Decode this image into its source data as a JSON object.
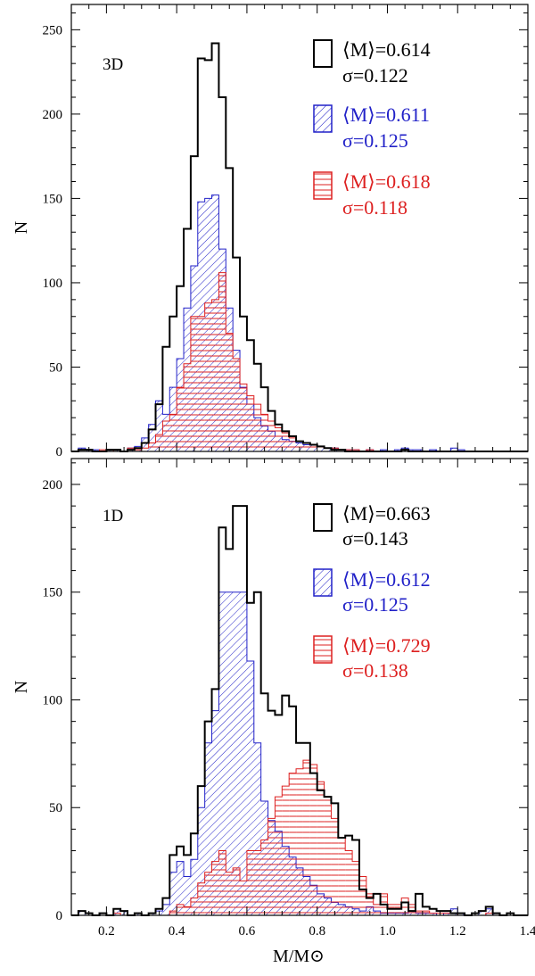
{
  "chart_data": [
    {
      "type": "histogram",
      "panel_label": "3D",
      "ylabel": "N",
      "xlabel": "",
      "xlim": [
        0.1,
        1.4
      ],
      "ylim": [
        0,
        265
      ],
      "bin_width": 0.02,
      "bin_start": 0.1,
      "x_ticks": [
        0.2,
        0.4,
        0.6,
        0.8,
        1.0,
        1.2,
        1.4
      ],
      "x_tick_labels": [],
      "y_ticks": [
        0,
        50,
        100,
        150,
        200,
        250
      ],
      "y_tick_labels": [
        "0",
        "50",
        "100",
        "150",
        "200",
        "250"
      ],
      "series": [
        {
          "name": "black",
          "color": "#000000",
          "fill": "none",
          "legend_mean": "⟨M⟩=0.614",
          "legend_sigma": "σ=0.122",
          "counts": [
            0,
            1,
            1,
            0,
            0,
            1,
            1,
            0,
            1,
            2,
            5,
            13,
            28,
            62,
            80,
            98,
            132,
            175,
            233,
            232,
            242,
            210,
            168,
            115,
            80,
            66,
            52,
            38,
            24,
            16,
            12,
            9,
            6,
            5,
            4,
            3,
            2,
            1,
            1,
            0,
            0,
            0,
            0,
            0,
            0,
            0,
            0,
            1,
            0,
            0,
            0,
            0,
            0,
            0,
            0,
            0,
            0,
            0,
            0,
            0,
            0,
            0,
            0,
            0,
            0
          ]
        },
        {
          "name": "blue",
          "color": "#2121c8",
          "fill": "hatch-diagonal",
          "legend_mean": "⟨M⟩=0.611",
          "legend_sigma": "σ=0.125",
          "counts": [
            0,
            2,
            1,
            1,
            0,
            1,
            1,
            0,
            2,
            3,
            8,
            16,
            30,
            22,
            38,
            55,
            85,
            110,
            148,
            150,
            152,
            120,
            85,
            60,
            38,
            28,
            20,
            15,
            12,
            9,
            7,
            6,
            5,
            4,
            4,
            3,
            2,
            2,
            1,
            1,
            1,
            0,
            1,
            0,
            1,
            0,
            1,
            2,
            1,
            1,
            0,
            1,
            0,
            0,
            2,
            1,
            0,
            0,
            0,
            0,
            0,
            0,
            0,
            0,
            0
          ]
        },
        {
          "name": "red",
          "color": "#dd2020",
          "fill": "hatch-horizontal",
          "legend_mean": "⟨M⟩=0.618",
          "legend_sigma": "σ=0.118",
          "counts": [
            0,
            0,
            0,
            0,
            1,
            0,
            1,
            0,
            2,
            1,
            2,
            5,
            10,
            18,
            22,
            38,
            52,
            80,
            80,
            88,
            90,
            106,
            70,
            55,
            40,
            33,
            28,
            22,
            18,
            14,
            11,
            8,
            6,
            5,
            4,
            3,
            2,
            2,
            1,
            1,
            1,
            0,
            1,
            0,
            0,
            0,
            0,
            0,
            0,
            0,
            0,
            0,
            0,
            0,
            0,
            0,
            0,
            0,
            0,
            0,
            0,
            0,
            0,
            0,
            0
          ]
        }
      ]
    },
    {
      "type": "histogram",
      "panel_label": "1D",
      "ylabel": "N",
      "xlabel": "M/M⊙",
      "xlim": [
        0.1,
        1.4
      ],
      "ylim": [
        0,
        212
      ],
      "bin_width": 0.02,
      "bin_start": 0.1,
      "x_ticks": [
        0.2,
        0.4,
        0.6,
        0.8,
        1.0,
        1.2,
        1.4
      ],
      "x_tick_labels": [
        "0.2",
        "0.4",
        "0.6",
        "0.8",
        "1.0",
        "1.2",
        "1.4"
      ],
      "y_ticks": [
        0,
        50,
        100,
        150,
        200
      ],
      "y_tick_labels": [
        "0",
        "50",
        "100",
        "150",
        "200"
      ],
      "series": [
        {
          "name": "black",
          "color": "#000000",
          "fill": "none",
          "legend_mean": "⟨M⟩=0.663",
          "legend_sigma": "σ=0.143",
          "counts": [
            0,
            2,
            1,
            0,
            1,
            0,
            3,
            2,
            0,
            1,
            0,
            1,
            3,
            8,
            28,
            32,
            28,
            38,
            60,
            90,
            105,
            180,
            170,
            190,
            190,
            145,
            150,
            103,
            95,
            93,
            102,
            97,
            80,
            80,
            66,
            58,
            55,
            52,
            36,
            37,
            35,
            12,
            8,
            10,
            5,
            3,
            3,
            6,
            2,
            10,
            4,
            3,
            2,
            2,
            1,
            1,
            0,
            1,
            2,
            4,
            1,
            0,
            1,
            0,
            0
          ]
        },
        {
          "name": "blue",
          "color": "#2121c8",
          "fill": "hatch-diagonal",
          "legend_mean": "⟨M⟩=0.612",
          "legend_sigma": "σ=0.125",
          "counts": [
            0,
            2,
            1,
            0,
            1,
            0,
            3,
            2,
            0,
            1,
            0,
            1,
            2,
            5,
            20,
            25,
            18,
            26,
            50,
            80,
            95,
            150,
            150,
            150,
            150,
            118,
            80,
            53,
            44,
            39,
            32,
            27,
            22,
            18,
            14,
            10,
            8,
            6,
            5,
            4,
            3,
            2,
            4,
            2,
            1,
            1,
            1,
            1,
            2,
            1,
            1,
            1,
            0,
            1,
            3,
            1,
            0,
            1,
            2,
            3,
            1,
            0,
            0,
            0,
            0
          ]
        },
        {
          "name": "red",
          "color": "#dd2020",
          "fill": "hatch-horizontal",
          "legend_mean": "⟨M⟩=0.729",
          "legend_sigma": "σ=0.138",
          "counts": [
            0,
            0,
            0,
            0,
            0,
            0,
            1,
            0,
            0,
            0,
            0,
            0,
            0,
            0,
            2,
            5,
            4,
            8,
            15,
            20,
            25,
            30,
            20,
            22,
            16,
            30,
            30,
            35,
            45,
            55,
            60,
            66,
            68,
            72,
            70,
            62,
            55,
            45,
            36,
            30,
            25,
            18,
            10,
            5,
            10,
            5,
            5,
            8,
            5,
            2,
            2,
            1,
            1,
            1,
            1,
            0,
            0,
            0,
            0,
            1,
            0,
            0,
            0,
            0,
            0
          ]
        }
      ]
    }
  ]
}
